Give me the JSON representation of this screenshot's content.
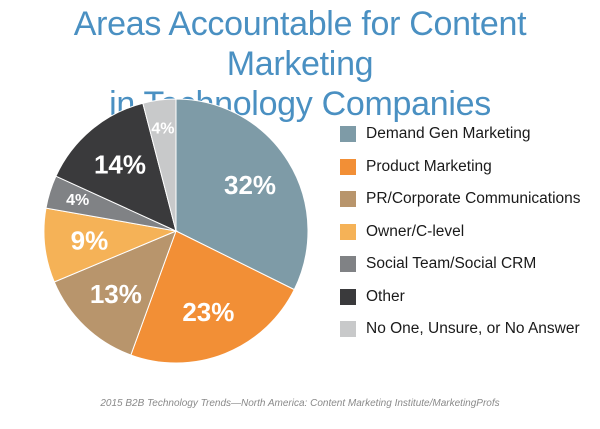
{
  "title": {
    "line1": "Areas Accountable for Content Marketing",
    "line2": "in Technology Companies"
  },
  "source": "2015 B2B Technology Trends—North America: Content Marketing Institute/MarketingProfs",
  "chart_data": {
    "type": "pie",
    "title": "Areas Accountable for Content Marketing in Technology Companies",
    "legend_position": "right",
    "slices": [
      {
        "label": "Demand Gen Marketing",
        "value": 32,
        "display": "32%",
        "color": "#7e9ba7"
      },
      {
        "label": "Product Marketing",
        "value": 23,
        "display": "23%",
        "color": "#f28f36"
      },
      {
        "label": "PR/Corporate Communications",
        "value": 13,
        "display": "13%",
        "color": "#b8956c"
      },
      {
        "label": "Owner/C-level",
        "value": 9,
        "display": "9%",
        "color": "#f5b257"
      },
      {
        "label": "Social Team/Social CRM",
        "value": 4,
        "display": "4%",
        "color": "#808285"
      },
      {
        "label": "Other",
        "value": 14,
        "display": "14%",
        "color": "#3a3a3c"
      },
      {
        "label": "No One, Unsure, or No Answer",
        "value": 4,
        "display": "4%",
        "color": "#c8c9ca"
      }
    ]
  }
}
